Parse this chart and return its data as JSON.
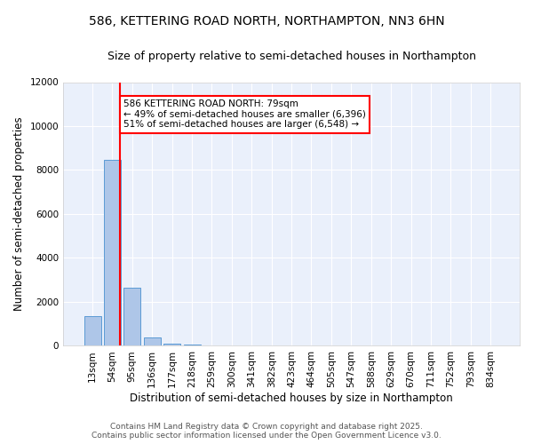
{
  "title": "586, KETTERING ROAD NORTH, NORTHAMPTON, NN3 6HN",
  "subtitle": "Size of property relative to semi-detached houses in Northampton",
  "xlabel": "Distribution of semi-detached houses by size in Northampton",
  "ylabel": "Number of semi-detached properties",
  "categories": [
    "13sqm",
    "54sqm",
    "95sqm",
    "136sqm",
    "177sqm",
    "218sqm",
    "259sqm",
    "300sqm",
    "341sqm",
    "382sqm",
    "423sqm",
    "464sqm",
    "505sqm",
    "547sqm",
    "588sqm",
    "629sqm",
    "670sqm",
    "711sqm",
    "752sqm",
    "793sqm",
    "834sqm"
  ],
  "values": [
    1350,
    8450,
    2650,
    380,
    110,
    60,
    0,
    0,
    0,
    0,
    0,
    0,
    0,
    0,
    0,
    0,
    0,
    0,
    0,
    0,
    0
  ],
  "bar_color": "#aec6e8",
  "bar_edge_color": "#5b9bd5",
  "vline_color": "red",
  "vline_x_pos": 1.4,
  "annotation_text": "586 KETTERING ROAD NORTH: 79sqm\n← 49% of semi-detached houses are smaller (6,396)\n51% of semi-detached houses are larger (6,548) →",
  "annotation_box_color": "white",
  "annotation_box_edge": "red",
  "ylim": [
    0,
    12000
  ],
  "yticks": [
    0,
    2000,
    4000,
    6000,
    8000,
    10000,
    12000
  ],
  "background_color": "#eaf0fb",
  "grid_color": "#ffffff",
  "footer_line1": "Contains HM Land Registry data © Crown copyright and database right 2025.",
  "footer_line2": "Contains public sector information licensed under the Open Government Licence v3.0.",
  "title_fontsize": 10,
  "subtitle_fontsize": 9,
  "axis_label_fontsize": 8.5,
  "tick_fontsize": 7.5,
  "annotation_fontsize": 7.5,
  "footer_fontsize": 6.5
}
